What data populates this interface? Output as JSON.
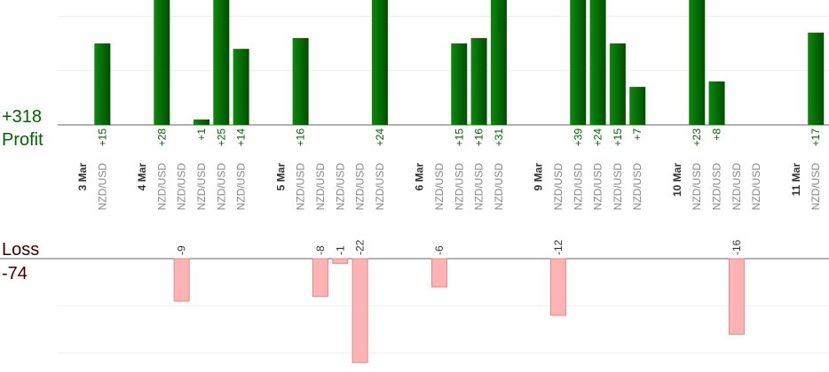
{
  "chart_data": {
    "type": "bar",
    "days": [
      {
        "date": "3 Mar",
        "trades": [
          "NZD/USD"
        ]
      },
      {
        "date": "4 Mar",
        "trades": [
          "NZD/USD",
          "NZD/USD",
          "NZD/USD",
          "NZD/USD",
          "NZD/USD"
        ]
      },
      {
        "date": "5 Mar",
        "trades": [
          "NZD/USD",
          "NZD/USD",
          "NZD/USD",
          "NZD/USD",
          "NZD/USD"
        ]
      },
      {
        "date": "6 Mar",
        "trades": [
          "NZD/USD",
          "NZD/USD",
          "NZD/USD",
          "NZD/USD"
        ]
      },
      {
        "date": "9 Mar",
        "trades": [
          "NZD/USD",
          "NZD/USD",
          "NZD/USD",
          "NZD/USD",
          "NZD/USD"
        ]
      },
      {
        "date": "10 Mar",
        "trades": [
          "NZD/USD",
          "NZD/USD",
          "NZD/USD",
          "NZD/USD"
        ]
      },
      {
        "date": "11 Mar",
        "trades": [
          "NZD/USD"
        ]
      }
    ],
    "series": [
      {
        "name": "Profit",
        "color": "#006400",
        "total": {
          "value": 318,
          "label": "+318"
        },
        "values": [
          15,
          28,
          null,
          1,
          25,
          14,
          16,
          null,
          null,
          null,
          24,
          null,
          15,
          16,
          31,
          null,
          39,
          24,
          15,
          7,
          23,
          8,
          null,
          null,
          17
        ],
        "value_labels": [
          "+15",
          "+28",
          null,
          "+1",
          "+25",
          "+14",
          "+16",
          null,
          null,
          null,
          "+24",
          null,
          "+15",
          "+16",
          "+31",
          null,
          "+39",
          "+24",
          "+15",
          "+7",
          "+23",
          "+8",
          null,
          null,
          "+17"
        ],
        "ylim": [
          0,
          23
        ],
        "yticks": [
          10,
          20
        ]
      },
      {
        "name": "Loss",
        "color": "#ffb3b3",
        "total": -74,
        "values": [
          null,
          null,
          -9,
          null,
          null,
          null,
          null,
          -8,
          -1,
          -22,
          null,
          -6,
          null,
          null,
          null,
          -12,
          null,
          null,
          null,
          null,
          null,
          null,
          -16,
          null,
          null
        ],
        "ylim": [
          -24,
          0
        ],
        "yticks": [
          -10,
          -20
        ]
      }
    ],
    "grid": true
  }
}
